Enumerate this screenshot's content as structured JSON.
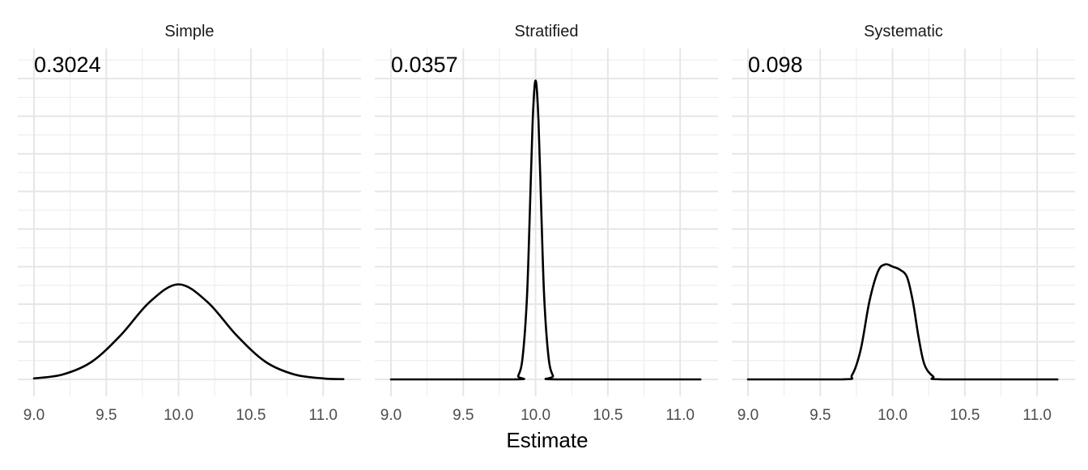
{
  "chart_data": {
    "type": "line",
    "facet_type": "density",
    "xlabel": "Estimate",
    "ylabel": "",
    "xlim": [
      9.0,
      11.15
    ],
    "x_ticks": [
      9.0,
      9.5,
      10.0,
      10.5,
      11.0
    ],
    "x_tick_labels": [
      "9.0",
      "9.5",
      "10.0",
      "10.5",
      "11.0"
    ],
    "grid": true,
    "y_ticks_shown": false,
    "line_color": "#000000",
    "panels": [
      {
        "name": "Simple",
        "annotation": "0.3024",
        "x": [
          9.0,
          9.2,
          9.4,
          9.6,
          9.8,
          10.0,
          10.2,
          10.4,
          10.6,
          10.8,
          11.0,
          11.14
        ],
        "y": [
          0.0065,
          0.0331,
          0.1177,
          0.2939,
          0.5145,
          0.6321,
          0.5145,
          0.2939,
          0.1177,
          0.0331,
          0.0065,
          0.0017
        ]
      },
      {
        "name": "Stratified",
        "annotation": "0.0357",
        "x": [
          9.0,
          9.85,
          9.88,
          9.91,
          9.94,
          9.96,
          9.98,
          10.0,
          10.02,
          10.04,
          10.06,
          10.09,
          10.12,
          10.15,
          11.14
        ],
        "y": [
          0.0,
          0.0,
          0.0245,
          0.144,
          0.5385,
          1.1015,
          1.7212,
          1.9872,
          1.7212,
          1.1015,
          0.5385,
          0.144,
          0.0245,
          0.0,
          0.0
        ]
      },
      {
        "name": "Systematic",
        "annotation": "0.098",
        "x": [
          9.0,
          9.65,
          9.72,
          9.78,
          9.84,
          9.9,
          9.95,
          10.0,
          10.05,
          10.1,
          10.14,
          10.18,
          10.22,
          10.28,
          10.35,
          11.14
        ],
        "y": [
          0.0,
          0.0,
          0.03,
          0.2,
          0.52,
          0.72,
          0.765,
          0.75,
          0.73,
          0.68,
          0.52,
          0.28,
          0.1,
          0.02,
          0.0,
          0.0
        ]
      }
    ]
  }
}
